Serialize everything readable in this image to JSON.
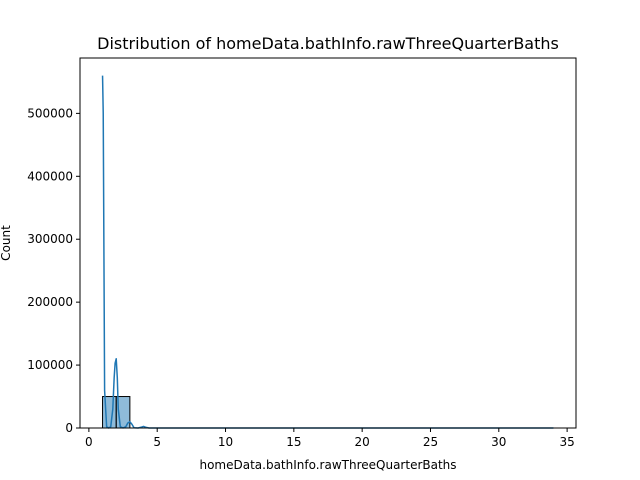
{
  "chart_data": {
    "type": "histogram",
    "title": "Distribution of homeData.bathInfo.rawThreeQuarterBaths",
    "xlabel": "homeData.bathInfo.rawThreeQuarterBaths",
    "ylabel": "Count",
    "xlim": [
      -0.65,
      35.65
    ],
    "ylim": [
      0,
      588000
    ],
    "xticks": [
      0,
      5,
      10,
      15,
      20,
      25,
      30,
      35
    ],
    "yticks": [
      0,
      100000,
      200000,
      300000,
      400000,
      500000
    ],
    "grid": false,
    "bar_color": "#1f77b4",
    "bar_alpha": 0.5,
    "bar_edge_color": "#000000",
    "line_color": "#1f77b4",
    "bins": [
      {
        "x0": 1.0,
        "x1": 2.0,
        "count": 50000
      },
      {
        "x0": 2.0,
        "x1": 3.0,
        "count": 50000
      }
    ],
    "kde": {
      "x": [
        1.0,
        1.05,
        1.15,
        1.3,
        1.45,
        1.6,
        1.75,
        1.85,
        1.92,
        2.0,
        2.08,
        2.15,
        2.3,
        2.5,
        2.7,
        2.85,
        3.0,
        3.15,
        3.3,
        3.6,
        3.85,
        4.0,
        4.15,
        4.4,
        5.0,
        8.0,
        15.0,
        25.0,
        34.0
      ],
      "y": [
        560000,
        500000,
        60000,
        2000,
        100,
        2000,
        30000,
        80000,
        103000,
        110000,
        80000,
        30000,
        2000,
        100,
        2000,
        8000,
        10000,
        6000,
        500,
        0,
        1500,
        2500,
        1200,
        0,
        0,
        0,
        0,
        0,
        0
      ]
    }
  }
}
